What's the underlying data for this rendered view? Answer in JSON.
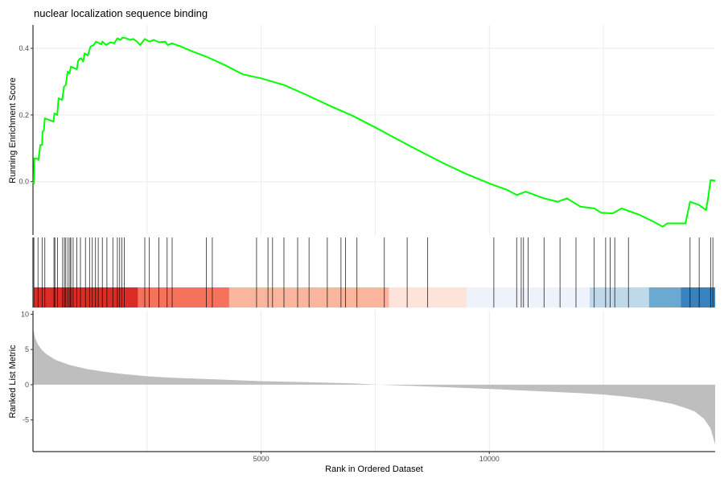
{
  "chart_data": {
    "type": "line",
    "title": "nuclear localization sequence binding",
    "n_genes": 14950,
    "xlabel": "Rank in Ordered Dataset",
    "x_ticks": [
      5000,
      10000
    ],
    "grid": "vertical major lines at 2500-unit steps",
    "panels": {
      "enrichment": {
        "ylabel": "Running Enrichment Score",
        "ylim": [
          -0.16,
          0.47
        ],
        "y_ticks": [
          0.0,
          0.2,
          0.4
        ],
        "line_color": "#00ff00",
        "points": [
          [
            0,
            0.0
          ],
          [
            20,
            -0.005
          ],
          [
            30,
            0.07
          ],
          [
            110,
            0.068
          ],
          [
            120,
            0.065
          ],
          [
            160,
            0.11
          ],
          [
            200,
            0.11
          ],
          [
            210,
            0.15
          ],
          [
            240,
            0.155
          ],
          [
            260,
            0.19
          ],
          [
            450,
            0.18
          ],
          [
            470,
            0.205
          ],
          [
            530,
            0.2
          ],
          [
            560,
            0.25
          ],
          [
            640,
            0.245
          ],
          [
            680,
            0.285
          ],
          [
            720,
            0.29
          ],
          [
            760,
            0.33
          ],
          [
            800,
            0.325
          ],
          [
            830,
            0.345
          ],
          [
            960,
            0.337
          ],
          [
            990,
            0.362
          ],
          [
            1020,
            0.368
          ],
          [
            1060,
            0.37
          ],
          [
            1100,
            0.36
          ],
          [
            1130,
            0.385
          ],
          [
            1200,
            0.378
          ],
          [
            1260,
            0.405
          ],
          [
            1330,
            0.41
          ],
          [
            1380,
            0.42
          ],
          [
            1500,
            0.412
          ],
          [
            1520,
            0.42
          ],
          [
            1600,
            0.41
          ],
          [
            1700,
            0.418
          ],
          [
            1780,
            0.415
          ],
          [
            1850,
            0.43
          ],
          [
            1920,
            0.425
          ],
          [
            1960,
            0.432
          ],
          [
            2050,
            0.43
          ],
          [
            2120,
            0.425
          ],
          [
            2200,
            0.428
          ],
          [
            2280,
            0.42
          ],
          [
            2350,
            0.41
          ],
          [
            2450,
            0.428
          ],
          [
            2550,
            0.42
          ],
          [
            2650,
            0.425
          ],
          [
            2760,
            0.418
          ],
          [
            2900,
            0.42
          ],
          [
            2950,
            0.41
          ],
          [
            3050,
            0.415
          ],
          [
            3250,
            0.405
          ],
          [
            3500,
            0.39
          ],
          [
            3800,
            0.375
          ],
          [
            4200,
            0.35
          ],
          [
            4600,
            0.322
          ],
          [
            5000,
            0.31
          ],
          [
            5500,
            0.29
          ],
          [
            6000,
            0.26
          ],
          [
            6500,
            0.228
          ],
          [
            7000,
            0.198
          ],
          [
            7500,
            0.163
          ],
          [
            8000,
            0.126
          ],
          [
            8500,
            0.09
          ],
          [
            9000,
            0.055
          ],
          [
            9500,
            0.023
          ],
          [
            10000,
            -0.005
          ],
          [
            10400,
            -0.025
          ],
          [
            10600,
            -0.04
          ],
          [
            10800,
            -0.03
          ],
          [
            11200,
            -0.05
          ],
          [
            11500,
            -0.06
          ],
          [
            11700,
            -0.05
          ],
          [
            12000,
            -0.075
          ],
          [
            12300,
            -0.08
          ],
          [
            12450,
            -0.093
          ],
          [
            12700,
            -0.095
          ],
          [
            12900,
            -0.08
          ],
          [
            13100,
            -0.09
          ],
          [
            13300,
            -0.1
          ],
          [
            13600,
            -0.12
          ],
          [
            13800,
            -0.135
          ],
          [
            13900,
            -0.125
          ],
          [
            14150,
            -0.125
          ],
          [
            14300,
            -0.125
          ],
          [
            14400,
            -0.06
          ],
          [
            14600,
            -0.07
          ],
          [
            14750,
            -0.085
          ],
          [
            14800,
            -0.045
          ],
          [
            14850,
            0.005
          ],
          [
            14950,
            0.003
          ]
        ]
      },
      "hits": {
        "positions": [
          20,
          110,
          200,
          260,
          460,
          480,
          540,
          650,
          690,
          720,
          770,
          810,
          830,
          880,
          960,
          1040,
          1150,
          1240,
          1300,
          1370,
          1430,
          1520,
          1620,
          1750,
          1850,
          1900,
          1950,
          2000,
          2450,
          2550,
          2760,
          2940,
          3050,
          3800,
          3930,
          4900,
          5150,
          5250,
          5500,
          5800,
          6050,
          6450,
          6750,
          6850,
          7100,
          7700,
          8200,
          8650,
          10100,
          10600,
          10700,
          10750,
          10850,
          11200,
          11550,
          11900,
          12300,
          12550,
          12650,
          12750,
          13050,
          14400,
          14600,
          14850,
          14900
        ],
        "color_bands": [
          {
            "from": 0,
            "to": 2300,
            "color": "#dc2c26"
          },
          {
            "from": 2300,
            "to": 4300,
            "color": "#f5735b"
          },
          {
            "from": 4300,
            "to": 7800,
            "color": "#fbb49d"
          },
          {
            "from": 7800,
            "to": 9500,
            "color": "#fde3da"
          },
          {
            "from": 9500,
            "to": 12200,
            "color": "#eef2fb"
          },
          {
            "from": 12200,
            "to": 13500,
            "color": "#bfd9ea"
          },
          {
            "from": 13500,
            "to": 14200,
            "color": "#6aa9d2"
          },
          {
            "from": 14200,
            "to": 14950,
            "color": "#3882bf"
          }
        ]
      },
      "ranked_metric": {
        "ylabel": "Ranked List Metric",
        "ylim": [
          -9.5,
          10.5
        ],
        "y_ticks": [
          10,
          5,
          0,
          -5
        ],
        "fill_color": "#bebebe",
        "points": [
          [
            0,
            8.0
          ],
          [
            50,
            6.6
          ],
          [
            100,
            5.8
          ],
          [
            200,
            4.9
          ],
          [
            300,
            4.3
          ],
          [
            500,
            3.5
          ],
          [
            800,
            2.8
          ],
          [
            1200,
            2.2
          ],
          [
            1600,
            1.8
          ],
          [
            2000,
            1.5
          ],
          [
            2500,
            1.2
          ],
          [
            3000,
            1.0
          ],
          [
            4000,
            0.75
          ],
          [
            5000,
            0.5
          ],
          [
            6000,
            0.35
          ],
          [
            7000,
            0.18
          ],
          [
            7400,
            0.05
          ],
          [
            7600,
            0.0
          ],
          [
            8000,
            -0.1
          ],
          [
            9000,
            -0.35
          ],
          [
            10000,
            -0.6
          ],
          [
            11000,
            -0.9
          ],
          [
            12000,
            -1.2
          ],
          [
            12500,
            -1.4
          ],
          [
            13000,
            -1.7
          ],
          [
            13500,
            -2.1
          ],
          [
            14000,
            -2.7
          ],
          [
            14300,
            -3.3
          ],
          [
            14500,
            -3.8
          ],
          [
            14700,
            -4.8
          ],
          [
            14850,
            -6.2
          ],
          [
            14950,
            -8.5
          ]
        ]
      }
    }
  }
}
